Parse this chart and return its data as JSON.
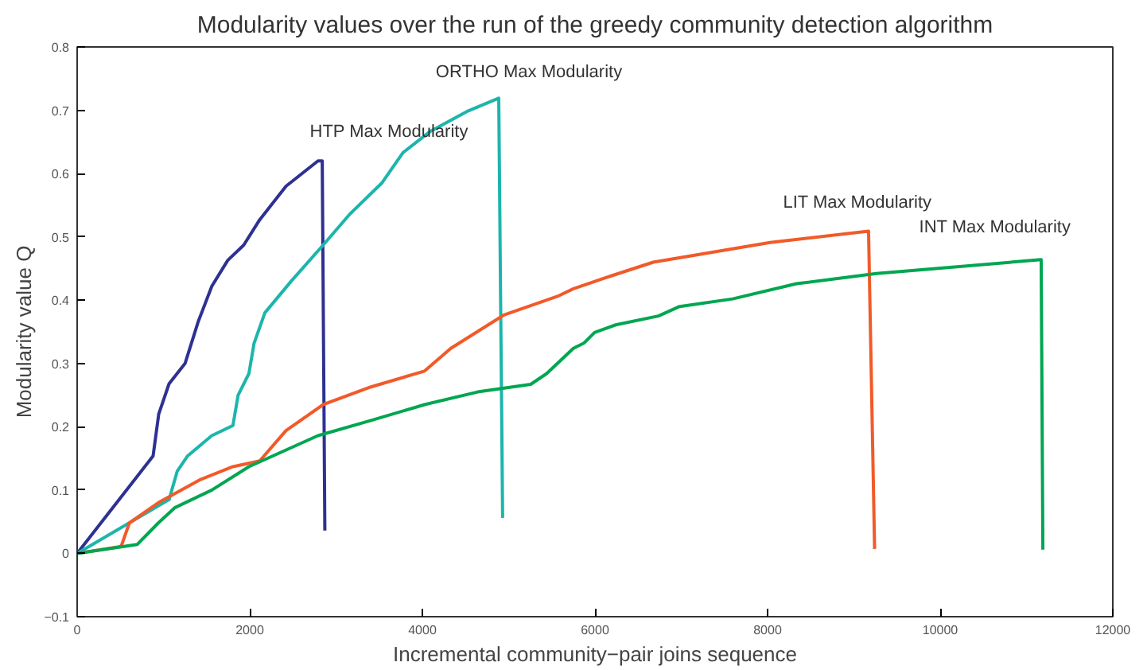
{
  "chart_data": {
    "type": "line",
    "title": "Modularity values over the run of the greedy community detection algorithm",
    "xlabel": "Incremental community−pair joins sequence",
    "ylabel": "Modularity value Q",
    "xlim": [
      0,
      12000
    ],
    "xticks": [
      0,
      2000,
      4000,
      6000,
      8000,
      10000,
      12000
    ],
    "ylim": [
      -0.1,
      0.8
    ],
    "yticks": [
      {
        "value": -0.1,
        "label": "−0.1"
      },
      0,
      0.1,
      0.2,
      0.3,
      0.4,
      0.5,
      0.6,
      0.7,
      0.8
    ],
    "grid": false,
    "marker": "none",
    "line_style": "solid",
    "series": [
      {
        "color": "#2e3192",
        "x": [
          0,
          880,
          945,
          1065,
          1250,
          1400,
          1560,
          1745,
          1930,
          2115,
          2420,
          2790,
          2840,
          2870
        ],
        "values": [
          0,
          0.154,
          0.22,
          0.268,
          0.3,
          0.365,
          0.422,
          0.463,
          0.487,
          0.527,
          0.58,
          0.62,
          0.62,
          0.036
        ]
      },
      {
        "color": "#1cb5ac",
        "x": [
          0,
          1065,
          1160,
          1280,
          1560,
          1805,
          1865,
          1990,
          2050,
          2175,
          2480,
          2850,
          3160,
          3530,
          3775,
          4085,
          4515,
          4885,
          4930
        ],
        "values": [
          0,
          0.085,
          0.13,
          0.154,
          0.186,
          0.202,
          0.25,
          0.284,
          0.332,
          0.38,
          0.43,
          0.487,
          0.536,
          0.585,
          0.633,
          0.666,
          0.698,
          0.719,
          0.056
        ]
      },
      {
        "color": "#f15a29",
        "x": [
          0,
          510,
          605,
          940,
          1435,
          1805,
          2115,
          2420,
          2850,
          3405,
          4025,
          4330,
          4950,
          5565,
          5750,
          6180,
          6675,
          8030,
          9170,
          9240
        ],
        "values": [
          0,
          0.011,
          0.048,
          0.08,
          0.117,
          0.137,
          0.146,
          0.194,
          0.235,
          0.263,
          0.288,
          0.324,
          0.377,
          0.406,
          0.418,
          0.438,
          0.46,
          0.491,
          0.509,
          0.007
        ]
      },
      {
        "color": "#00a651",
        "x": [
          0,
          695,
          940,
          1130,
          1560,
          1990,
          2790,
          3405,
          4025,
          4640,
          5255,
          5440,
          5750,
          5870,
          5995,
          6240,
          6735,
          6980,
          7595,
          8335,
          9260,
          11170,
          11190
        ],
        "values": [
          0,
          0.014,
          0.048,
          0.072,
          0.1,
          0.137,
          0.186,
          0.21,
          0.235,
          0.255,
          0.267,
          0.284,
          0.324,
          0.332,
          0.349,
          0.361,
          0.375,
          0.39,
          0.402,
          0.426,
          0.442,
          0.464,
          0.006
        ]
      }
    ],
    "annotations": [
      {
        "text": "HTP Max Modularity",
        "x": 2840,
        "y": 0.62
      },
      {
        "text": "ORTHO Max Modularity",
        "x": 4885,
        "y": 0.719
      },
      {
        "text": "LIT Max Modularity",
        "x": 9170,
        "y": 0.509
      },
      {
        "text": "INT Max Modularity",
        "x": 11170,
        "y": 0.464
      }
    ]
  }
}
